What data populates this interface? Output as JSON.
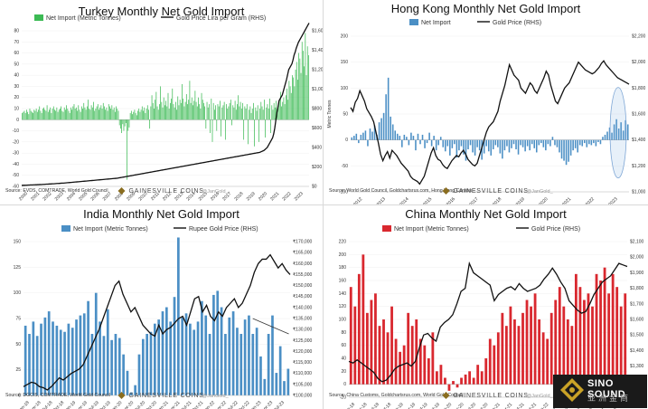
{
  "branding": {
    "logo_text": "GAINESVILLE COINS",
    "handle": "@JanGold_",
    "corner_logo_text": "SINO SOUND",
    "corner_logo_sub": "亚洲金商"
  },
  "chart_data": [
    {
      "id": "turkey",
      "type": "bar",
      "title": "Turkey Monthly Net Gold Import",
      "legend": {
        "bar": "Net Import (Metric Tonnes)",
        "line": "Gold Price Lira per Gram (RHS)",
        "placement": "top-left"
      },
      "bar_color": "#3cba54",
      "y_left": {
        "range": [
          -60,
          80
        ],
        "ticks": [
          -60,
          -50,
          -40,
          -30,
          -20,
          -10,
          0,
          10,
          20,
          30,
          40,
          50,
          60,
          70,
          80
        ]
      },
      "y_right": {
        "range": [
          0,
          1600
        ],
        "ticks": [
          "$0",
          "$200",
          "$400",
          "$600",
          "$800",
          "$1,000",
          "$1,200",
          "$1,400",
          "$1,600"
        ]
      },
      "x_ticks": [
        "2000",
        "2001",
        "2002",
        "2003",
        "2004",
        "2005",
        "2006",
        "2007",
        "2008",
        "2009",
        "2010",
        "2011",
        "2012",
        "2013",
        "2014",
        "2015",
        "2016",
        "2017",
        "2018",
        "2019",
        "2020",
        "2021",
        "2022",
        "2023"
      ],
      "series_bars": [
        6,
        7,
        8,
        6,
        9,
        7,
        5,
        10,
        8,
        7,
        6,
        9,
        8,
        10,
        7,
        9,
        12,
        8,
        6,
        10,
        11,
        9,
        8,
        13,
        7,
        9,
        11,
        6,
        10,
        12,
        9,
        8,
        11,
        7,
        9,
        10,
        12,
        8,
        7,
        11,
        9,
        13,
        10,
        8,
        6,
        11,
        9,
        12,
        14,
        10,
        11,
        8,
        13,
        9,
        7,
        12,
        10,
        15,
        11,
        9,
        12,
        18,
        10,
        9,
        13,
        11,
        16,
        8,
        10,
        12,
        14,
        9,
        11,
        13,
        10,
        15,
        12,
        9,
        11,
        8,
        14,
        12,
        10,
        13,
        9,
        11,
        7,
        12,
        10,
        8,
        -5,
        -8,
        -12,
        -4,
        -10,
        -6,
        -3,
        -54,
        -10,
        -7,
        6,
        8,
        5,
        7,
        9,
        6,
        4,
        8,
        10,
        7,
        9,
        12,
        8,
        11,
        6,
        10,
        13,
        9,
        -8,
        12,
        22,
        15,
        10,
        18,
        25,
        12,
        9,
        14,
        30,
        16,
        11,
        20,
        13,
        17,
        12,
        24,
        10,
        15,
        19,
        28,
        14,
        11,
        16,
        9,
        21,
        13,
        18,
        15,
        32,
        19,
        12,
        16,
        23,
        14,
        18,
        35,
        15,
        20,
        13,
        17,
        26,
        16,
        12,
        20,
        14,
        10,
        24,
        18,
        15,
        12,
        -8,
        16,
        11,
        14,
        -12,
        19,
        -20,
        15,
        9,
        13,
        -10,
        14,
        12,
        17,
        -15,
        11,
        13,
        16,
        -18,
        14,
        10,
        12,
        15,
        18,
        -5,
        13,
        11,
        17,
        9,
        14,
        22,
        12,
        16,
        10,
        15,
        -18,
        12,
        10,
        14,
        -22,
        9,
        12,
        6,
        10,
        15,
        -24,
        11,
        8,
        13,
        -20,
        10,
        16,
        12,
        9,
        18,
        -16,
        11,
        14,
        10,
        19,
        -12,
        13,
        9,
        15,
        11,
        17,
        10,
        14,
        18,
        25,
        12,
        16,
        20,
        14,
        22,
        28,
        18,
        35,
        30,
        24,
        40,
        38,
        30,
        45,
        52,
        36,
        60,
        55,
        42,
        70,
        62,
        48,
        78,
        40,
        66,
        58
      ],
      "series_line": [
        11,
        11,
        12,
        12,
        13,
        13,
        14,
        14,
        15,
        15,
        15,
        16,
        16,
        17,
        17,
        18,
        18,
        19,
        19,
        20,
        21,
        21,
        22,
        23,
        23,
        24,
        25,
        25,
        26,
        27,
        27,
        28,
        29,
        30,
        30,
        31,
        32,
        33,
        34,
        34,
        35,
        36,
        37,
        38,
        39,
        40,
        41,
        42,
        43,
        44,
        45,
        46,
        47,
        48,
        49,
        50,
        51,
        52,
        53,
        54,
        55,
        56,
        57,
        58,
        59,
        60,
        61,
        62,
        63,
        64,
        65,
        66,
        67,
        68,
        69,
        70,
        71,
        72,
        73,
        74,
        75,
        76,
        77,
        78,
        79,
        80,
        81,
        82,
        83,
        84,
        86,
        88,
        90,
        92,
        94,
        96,
        98,
        100,
        102,
        104,
        106,
        108,
        110,
        112,
        114,
        116,
        118,
        120,
        122,
        124,
        126,
        128,
        130,
        132,
        134,
        136,
        138,
        140,
        142,
        144,
        146,
        148,
        150,
        152,
        154,
        156,
        158,
        160,
        162,
        164,
        166,
        168,
        170,
        172,
        174,
        176,
        178,
        180,
        182,
        184,
        186,
        188,
        190,
        192,
        194,
        196,
        198,
        200,
        202,
        204,
        206,
        208,
        210,
        212,
        214,
        216,
        218,
        220,
        222,
        224,
        226,
        228,
        230,
        232,
        234,
        236,
        238,
        240,
        242,
        244,
        246,
        248,
        250,
        252,
        254,
        256,
        258,
        260,
        262,
        264,
        266,
        268,
        270,
        272,
        274,
        276,
        278,
        280,
        282,
        284,
        286,
        288,
        290,
        292,
        294,
        296,
        298,
        300,
        302,
        304,
        306,
        308,
        310,
        312,
        314,
        316,
        318,
        320,
        322,
        324,
        326,
        328,
        330,
        332,
        334,
        336,
        338,
        340,
        342,
        344,
        346,
        348,
        350,
        355,
        360,
        365,
        370,
        380,
        390,
        400,
        420,
        440,
        460,
        480,
        500,
        540,
        600,
        680,
        760,
        820,
        880,
        900,
        920,
        940,
        980,
        1020,
        1060,
        1100,
        1150,
        1200,
        1220,
        1240,
        1260,
        1300,
        1350,
        1380,
        1420,
        1450,
        1480,
        1500,
        1520,
        1540,
        1560,
        1580,
        1600,
        1620,
        1640,
        1660,
        1680
      ],
      "source": "Source: EVDS, COMTRADE, World Gold Council"
    },
    {
      "id": "hongkong",
      "type": "bar",
      "title": "Hong Kong Monthly Net Gold Import",
      "legend": {
        "bar": "Net Import",
        "line": "Gold Price (RHS)",
        "placement": "top-center"
      },
      "bar_color": "#4b8fc5",
      "y_left": {
        "label": "Metric Tonnes",
        "range": [
          -100,
          200
        ],
        "ticks": [
          "-100",
          "-50",
          "0",
          "50",
          "100",
          "150",
          "200"
        ]
      },
      "y_right": {
        "range": [
          1000,
          2200
        ],
        "ticks": [
          "$1,000",
          "$1,200",
          "$1,400",
          "$1,600",
          "$1,800",
          "$2,000",
          "$2,200"
        ]
      },
      "x_ticks": [
        "2012",
        "2013",
        "2014",
        "2015",
        "2016",
        "2017",
        "2018",
        "2019",
        "2020",
        "2021",
        "2022",
        "2023"
      ],
      "series_bars": [
        5,
        8,
        12,
        -6,
        10,
        14,
        18,
        -12,
        22,
        16,
        28,
        10,
        34,
        42,
        52,
        88,
        120,
        45,
        30,
        18,
        12,
        8,
        -14,
        10,
        6,
        -10,
        14,
        8,
        -20,
        12,
        -8,
        10,
        -16,
        -6,
        14,
        -12,
        8,
        -20,
        -10,
        6,
        -14,
        -22,
        -12,
        -30,
        -16,
        -8,
        -34,
        -20,
        -12,
        -28,
        -40,
        -18,
        -10,
        -24,
        -30,
        -14,
        -20,
        -38,
        -26,
        -12,
        -22,
        -30,
        -18,
        -10,
        -14,
        -26,
        -36,
        -20,
        -12,
        -24,
        -16,
        -8,
        -18,
        -28,
        -10,
        -14,
        -22,
        -12,
        -20,
        -8,
        -16,
        -24,
        -10,
        -6,
        -14,
        -20,
        -8,
        -12,
        6,
        -10,
        -14,
        -24,
        -36,
        -40,
        -48,
        -42,
        -30,
        -20,
        -16,
        -24,
        -10,
        -12,
        -6,
        -14,
        -8,
        -10,
        -6,
        -12,
        -4,
        -8,
        6,
        10,
        16,
        24,
        14,
        30,
        40,
        22,
        34,
        18,
        38,
        30
      ],
      "series_line": [
        1650,
        1620,
        1690,
        1720,
        1780,
        1740,
        1700,
        1640,
        1610,
        1580,
        1540,
        1460,
        1380,
        1290,
        1240,
        1280,
        1310,
        1260,
        1320,
        1300,
        1280,
        1250,
        1220,
        1200,
        1180,
        1160,
        1120,
        1100,
        1090,
        1080,
        1060,
        1090,
        1120,
        1180,
        1240,
        1300,
        1340,
        1280,
        1250,
        1240,
        1210,
        1190,
        1180,
        1210,
        1240,
        1260,
        1280,
        1270,
        1300,
        1320,
        1290,
        1250,
        1230,
        1210,
        1200,
        1220,
        1280,
        1340,
        1400,
        1460,
        1500,
        1520,
        1540,
        1580,
        1620,
        1700,
        1760,
        1820,
        1900,
        1980,
        1940,
        1900,
        1880,
        1860,
        1800,
        1780,
        1760,
        1800,
        1840,
        1820,
        1780,
        1760,
        1800,
        1840,
        1880,
        1930,
        1900,
        1820,
        1760,
        1700,
        1680,
        1720,
        1760,
        1800,
        1820,
        1840,
        1880,
        1920,
        1960,
        2000,
        1980,
        1960,
        1940,
        1930,
        1920,
        1910,
        1920,
        1940,
        1960,
        1990,
        2010,
        1980,
        1960,
        1940,
        1920,
        1900,
        1880,
        1870,
        1860,
        1850,
        1840,
        1830
      ],
      "source": "Source: World Gold Council, Goldchartsrus.com, Hong Kong Census"
    },
    {
      "id": "india",
      "type": "bar",
      "title": "India Monthly Net Gold Import",
      "legend": {
        "bar": "Net Import (Metric Tonnes)",
        "line": "Rupee Gold Price (RHS)",
        "placement": "top-center"
      },
      "bar_color": "#4b8fc5",
      "y_left": {
        "range": [
          0,
          150
        ],
        "ticks": [
          "0",
          "25",
          "50",
          "75",
          "100",
          "125",
          "150"
        ]
      },
      "y_right": {
        "range": [
          100000,
          170000
        ],
        "ticks": [
          "₹100,000",
          "₹105,000",
          "₹110,000",
          "₹115,000",
          "₹120,000",
          "₹125,000",
          "₹130,000",
          "₹135,000",
          "₹140,000",
          "₹145,000",
          "₹150,000",
          "₹155,000",
          "₹160,000",
          "₹165,000",
          "₹170,000"
        ]
      },
      "x_ticks": [
        "Jan-18",
        "Apr-18",
        "Jul-18",
        "Oct-18",
        "Jan-19",
        "Apr-19",
        "Jul-19",
        "Oct-19",
        "Jan-20",
        "Apr-20",
        "Jul-20",
        "Oct-20",
        "Jan-21",
        "Apr-21",
        "Jul-21",
        "Oct-21",
        "Jan-22",
        "Apr-22",
        "Jul-22",
        "Oct-22",
        "Jan-23",
        "Apr-23",
        "Jul-23"
      ],
      "series_bars": [
        68,
        60,
        72,
        58,
        70,
        76,
        82,
        72,
        68,
        64,
        62,
        70,
        66,
        74,
        78,
        80,
        92,
        60,
        100,
        72,
        58,
        84,
        54,
        60,
        56,
        40,
        24,
        3,
        10,
        40,
        55,
        60,
        62,
        70,
        74,
        82,
        86,
        72,
        96,
        154,
        76,
        80,
        70,
        64,
        72,
        92,
        78,
        60,
        98,
        102,
        86,
        60,
        76,
        82,
        66,
        60,
        74,
        78,
        60,
        66,
        38,
        16,
        60,
        78,
        22,
        48,
        14,
        26
      ],
      "series_line": [
        104000,
        105000,
        106000,
        105500,
        104000,
        103500,
        102500,
        104000,
        106000,
        108000,
        107000,
        108500,
        110000,
        111000,
        112000,
        114000,
        118000,
        122000,
        126000,
        130000,
        135000,
        140000,
        145000,
        150000,
        152000,
        146000,
        142000,
        138000,
        140000,
        136000,
        132000,
        130000,
        128000,
        127000,
        132000,
        128000,
        130000,
        131000,
        133000,
        135000,
        136000,
        132000,
        138000,
        144000,
        145000,
        138000,
        141000,
        136000,
        134000,
        138000,
        136000,
        140000,
        142000,
        144000,
        140000,
        142000,
        146000,
        150000,
        156000,
        160000,
        162000,
        162000,
        164000,
        161000,
        158000,
        160000,
        157000,
        155000
      ],
      "source": "Source: DGCIS, COMTRADE, World Gold Council"
    },
    {
      "id": "china",
      "type": "bar",
      "title": "China Monthly Net Gold Import",
      "legend": {
        "bar": "Net Import (Metric Tonnes)",
        "line": "Gold Price (RHS)",
        "placement": "top-center"
      },
      "bar_color": "#d9282f",
      "y_left": {
        "range": [
          -20,
          220
        ],
        "ticks": [
          "-20",
          "0",
          "20",
          "40",
          "60",
          "80",
          "100",
          "120",
          "140",
          "160",
          "180",
          "200",
          "220"
        ]
      },
      "y_right": {
        "range": [
          1100,
          2100
        ],
        "ticks": [
          "$1,100",
          "$1,200",
          "$1,300",
          "$1,400",
          "$1,500",
          "$1,600",
          "$1,700",
          "$1,800",
          "$1,900",
          "$2,000",
          "$2,100"
        ]
      },
      "x_ticks": [
        "Jan-18",
        "Apr-18",
        "Jul-18",
        "Oct-18",
        "Jan-19",
        "Apr-19",
        "Jul-19",
        "Oct-19",
        "Jan-20",
        "Apr-20",
        "Jul-20",
        "Oct-20",
        "Jan-21",
        "Apr-21",
        "Jul-21",
        "Oct-21",
        "Jan-22",
        "Apr-22",
        "Jul-22",
        "Oct-22",
        "Jan-23",
        "Apr-23",
        "Jul-23"
      ],
      "series_bars": [
        150,
        120,
        170,
        200,
        110,
        130,
        140,
        90,
        100,
        80,
        120,
        70,
        50,
        60,
        110,
        90,
        100,
        70,
        60,
        40,
        80,
        20,
        30,
        10,
        -10,
        5,
        -5,
        10,
        15,
        20,
        10,
        30,
        20,
        40,
        70,
        60,
        80,
        110,
        90,
        120,
        100,
        90,
        110,
        130,
        120,
        140,
        100,
        80,
        70,
        110,
        130,
        150,
        120,
        100,
        90,
        170,
        150,
        130,
        140,
        120,
        170,
        160,
        180,
        140,
        170,
        150,
        120,
        140
      ],
      "series_line": [
        1330,
        1320,
        1340,
        1320,
        1300,
        1280,
        1260,
        1220,
        1200,
        1210,
        1240,
        1280,
        1300,
        1310,
        1320,
        1300,
        1330,
        1420,
        1500,
        1510,
        1480,
        1460,
        1550,
        1580,
        1600,
        1630,
        1700,
        1780,
        1800,
        1960,
        1900,
        1880,
        1860,
        1840,
        1820,
        1720,
        1760,
        1780,
        1800,
        1810,
        1790,
        1830,
        1800,
        1780,
        1790,
        1800,
        1820,
        1860,
        1890,
        1930,
        1890,
        1840,
        1800,
        1720,
        1690,
        1660,
        1640,
        1650,
        1700,
        1760,
        1800,
        1840,
        1860,
        1880,
        1920,
        1960,
        1950,
        1940
      ],
      "source": "Source: China Customs, Goldchartsrus.com, World Gold Council"
    }
  ]
}
